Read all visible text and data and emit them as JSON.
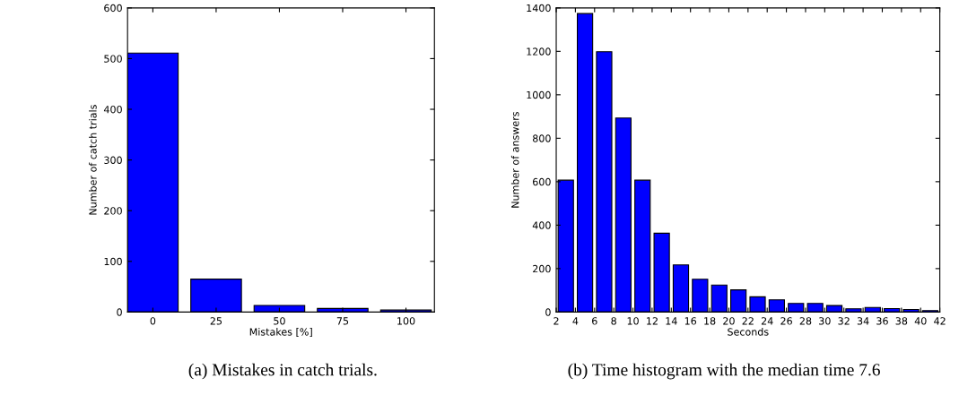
{
  "chart_data": [
    {
      "type": "bar",
      "categories": [
        "0",
        "25",
        "50",
        "75",
        "100"
      ],
      "values": [
        511,
        65,
        13,
        7,
        4
      ],
      "color": "#0000ff",
      "xlabel": "Mistakes [%]",
      "ylabel": "Number of catch trials",
      "ylim": [
        0,
        600
      ],
      "yticks": [
        0,
        100,
        200,
        300,
        400,
        500,
        600
      ],
      "grid": false,
      "legend": false,
      "annotations": [
        "(a) Mistakes in catch trials."
      ]
    },
    {
      "type": "histogram",
      "bins": [
        2,
        4,
        6,
        8,
        10,
        12,
        14,
        16,
        18,
        20,
        22,
        24,
        26,
        28,
        30,
        32,
        34,
        36,
        38,
        40,
        42
      ],
      "values": [
        607,
        1374,
        1198,
        893,
        607,
        363,
        217,
        151,
        124,
        102,
        70,
        56,
        40,
        40,
        30,
        15,
        21,
        16,
        12,
        7
      ],
      "color": "#0000ff",
      "xlabel": "Seconds",
      "ylabel": "Number of answers",
      "xlim": [
        2,
        42
      ],
      "xticks": [
        2,
        4,
        6,
        8,
        10,
        12,
        14,
        16,
        18,
        20,
        22,
        24,
        26,
        28,
        30,
        32,
        34,
        36,
        38,
        40,
        42
      ],
      "ylim": [
        0,
        1400
      ],
      "yticks": [
        0,
        200,
        400,
        600,
        800,
        1000,
        1200,
        1400
      ],
      "grid": false,
      "legend": false,
      "annotations": [
        "(b) Time histogram with the median time 7.6"
      ]
    }
  ]
}
